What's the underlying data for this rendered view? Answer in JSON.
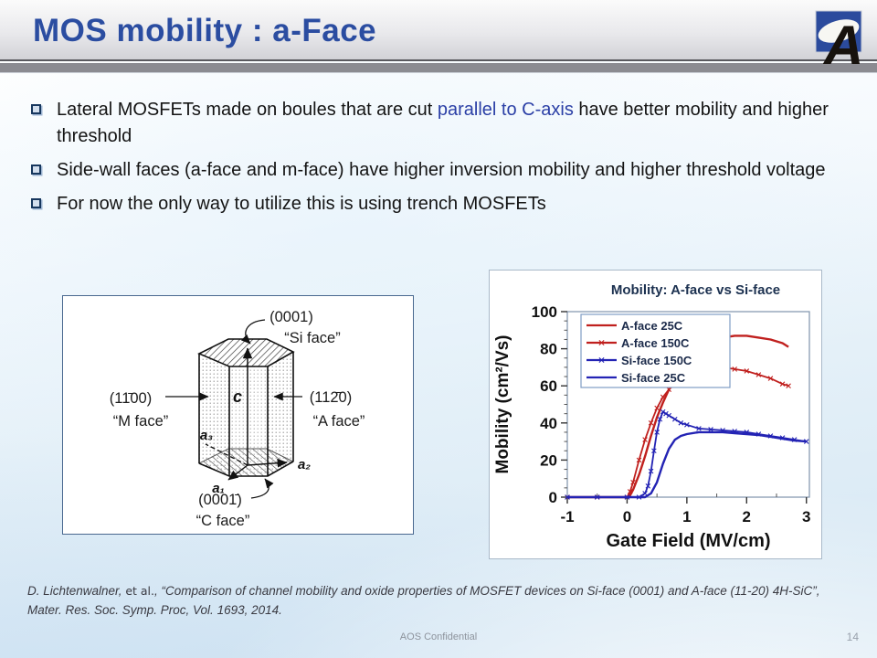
{
  "slide": {
    "title": "MOS mobility : a-Face",
    "footer_confidential": "AOS Confidential",
    "page_number": "14",
    "accent_color": "#2b4da1",
    "highlight_color": "#2b3fa6",
    "logo_letter": "A"
  },
  "bullets": [
    {
      "pre": "Lateral MOSFETs made on boules that are cut ",
      "highlight": "parallel to C-axis",
      "post": " have better mobility and higher threshold"
    },
    {
      "pre": "Side-wall faces (a-face and m-face) have higher inversion mobility and higher threshold voltage",
      "highlight": "",
      "post": ""
    },
    {
      "pre": "For now the only way to utilize this is using trench MOSFETs",
      "highlight": "",
      "post": ""
    }
  ],
  "citation": {
    "author": "D. Lichtenwalner, ",
    "etal": "et al.",
    "rest": ", “Comparison of channel mobility and oxide properties of MOSFET devices on Si-face (0001) and A-face (11-20) 4H-SiC”, Mater. Res. Soc. Symp. Proc, Vol. 1693, 2014."
  },
  "diagram": {
    "top_plane": "(0001)",
    "top_face": "“Si face”",
    "left_plane": "(11̄00)",
    "left_face": "“M face”",
    "right_plane": "(112̄0)",
    "right_face": "“A face”",
    "bottom_plane": "(0001̄)",
    "bottom_face": "“C face”",
    "c_label": "c",
    "a1": "a₁",
    "a2": "a₂",
    "a3": "a₃"
  },
  "chart_data": {
    "type": "line",
    "title": "Mobility: A-face vs Si-face",
    "xlabel": "Gate Field (MV/cm)",
    "ylabel": "Mobility (cm²/Vs)",
    "xlim": [
      -1,
      3.05
    ],
    "ylim": [
      0,
      100
    ],
    "xticks": [
      -1,
      0,
      1,
      2,
      3
    ],
    "yticks": [
      0,
      20,
      40,
      60,
      80,
      100
    ],
    "grid": false,
    "legend_position": "upper-left",
    "series": [
      {
        "name": "A-face 25C",
        "color": "#c0201e",
        "marker": "none",
        "points": [
          [
            -1,
            0
          ],
          [
            -0.5,
            0
          ],
          [
            0,
            0
          ],
          [
            0.05,
            1
          ],
          [
            0.1,
            4
          ],
          [
            0.2,
            12
          ],
          [
            0.3,
            22
          ],
          [
            0.4,
            33
          ],
          [
            0.5,
            43
          ],
          [
            0.6,
            51
          ],
          [
            0.7,
            58
          ],
          [
            0.8,
            64
          ],
          [
            0.9,
            69
          ],
          [
            1.0,
            73
          ],
          [
            1.1,
            77
          ],
          [
            1.2,
            80
          ],
          [
            1.4,
            84
          ],
          [
            1.6,
            86
          ],
          [
            1.8,
            87
          ],
          [
            2.0,
            87
          ],
          [
            2.2,
            86
          ],
          [
            2.4,
            85
          ],
          [
            2.5,
            84
          ],
          [
            2.6,
            83
          ],
          [
            2.7,
            81
          ]
        ]
      },
      {
        "name": "A-face 150C",
        "color": "#c0201e",
        "marker": "x",
        "points": [
          [
            -1,
            0
          ],
          [
            -0.5,
            0
          ],
          [
            0,
            0
          ],
          [
            0.05,
            3
          ],
          [
            0.1,
            8
          ],
          [
            0.2,
            20
          ],
          [
            0.3,
            31
          ],
          [
            0.4,
            40
          ],
          [
            0.5,
            48
          ],
          [
            0.6,
            54
          ],
          [
            0.7,
            58
          ],
          [
            0.8,
            61
          ],
          [
            0.9,
            64
          ],
          [
            1.0,
            66
          ],
          [
            1.1,
            68
          ],
          [
            1.2,
            69
          ],
          [
            1.4,
            70
          ],
          [
            1.6,
            70
          ],
          [
            1.8,
            69
          ],
          [
            2.0,
            68
          ],
          [
            2.2,
            66
          ],
          [
            2.4,
            64
          ],
          [
            2.6,
            61
          ],
          [
            2.7,
            60
          ]
        ]
      },
      {
        "name": "Si-face 150C",
        "color": "#2323b4",
        "marker": "x",
        "points": [
          [
            -1,
            0
          ],
          [
            -0.5,
            0
          ],
          [
            0,
            0
          ],
          [
            0.2,
            0
          ],
          [
            0.3,
            2
          ],
          [
            0.35,
            6
          ],
          [
            0.4,
            14
          ],
          [
            0.45,
            25
          ],
          [
            0.5,
            35
          ],
          [
            0.55,
            42
          ],
          [
            0.6,
            46
          ],
          [
            0.65,
            45
          ],
          [
            0.7,
            44
          ],
          [
            0.8,
            42
          ],
          [
            0.9,
            40
          ],
          [
            1.0,
            39
          ],
          [
            1.2,
            37
          ],
          [
            1.4,
            36.5
          ],
          [
            1.6,
            36
          ],
          [
            1.8,
            35.5
          ],
          [
            2.0,
            35
          ],
          [
            2.2,
            34
          ],
          [
            2.4,
            33
          ],
          [
            2.6,
            32
          ],
          [
            2.8,
            31
          ],
          [
            3.0,
            30
          ]
        ]
      },
      {
        "name": "Si-face 25C",
        "color": "#2323b4",
        "marker": "none",
        "points": [
          [
            -1,
            0
          ],
          [
            -0.5,
            0
          ],
          [
            0,
            0
          ],
          [
            0.3,
            0
          ],
          [
            0.4,
            2
          ],
          [
            0.5,
            8
          ],
          [
            0.6,
            18
          ],
          [
            0.7,
            26
          ],
          [
            0.8,
            31
          ],
          [
            0.9,
            33
          ],
          [
            1.0,
            34
          ],
          [
            1.2,
            35
          ],
          [
            1.4,
            35
          ],
          [
            1.6,
            35
          ],
          [
            1.8,
            34.5
          ],
          [
            2.0,
            34
          ],
          [
            2.2,
            33.5
          ],
          [
            2.4,
            32.5
          ],
          [
            2.6,
            31.5
          ],
          [
            2.8,
            30.5
          ],
          [
            3.0,
            30
          ]
        ]
      }
    ]
  }
}
